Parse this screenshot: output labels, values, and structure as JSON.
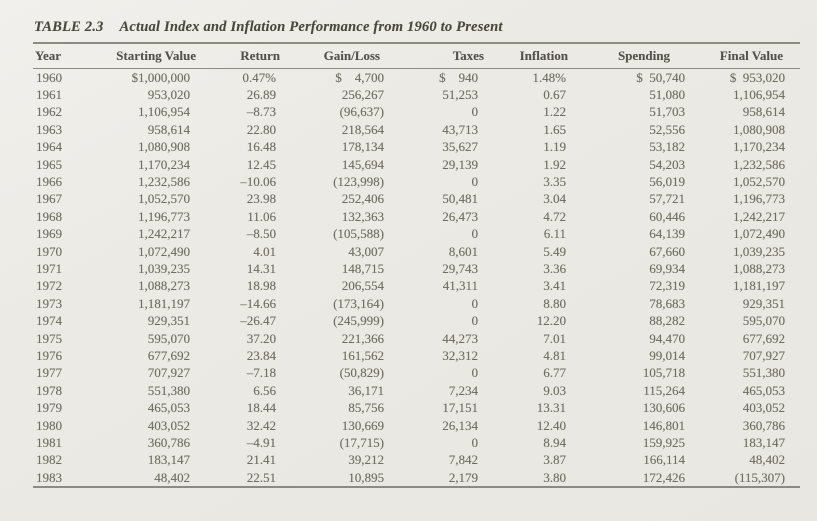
{
  "title": {
    "label": "TABLE 2.3",
    "text": "Actual Index and Inflation Performance from 1960 to Present"
  },
  "colors": {
    "paper": "#ebe9e3",
    "rule": "#8d8b80",
    "heading_text": "#54524a",
    "data_text": "#706e63"
  },
  "table": {
    "columns": [
      "Year",
      "Starting Value",
      "Return",
      "Gain/Loss",
      "Taxes",
      "Inflation",
      "Spending",
      "Final Value"
    ],
    "rows": [
      [
        "1960",
        "$1,000,000",
        "0.47%",
        "$    4,700",
        "$    940",
        "1.48%",
        "$  50,740",
        "$  953,020"
      ],
      [
        "1961",
        "953,020",
        "26.89",
        "256,267",
        "51,253",
        "0.67",
        "51,080",
        "1,106,954"
      ],
      [
        "1962",
        "1,106,954",
        "–8.73",
        "(96,637)",
        "0",
        "1.22",
        "51,703",
        "958,614"
      ],
      [
        "1963",
        "958,614",
        "22.80",
        "218,564",
        "43,713",
        "1.65",
        "52,556",
        "1,080,908"
      ],
      [
        "1964",
        "1,080,908",
        "16.48",
        "178,134",
        "35,627",
        "1.19",
        "53,182",
        "1,170,234"
      ],
      [
        "1965",
        "1,170,234",
        "12.45",
        "145,694",
        "29,139",
        "1.92",
        "54,203",
        "1,232,586"
      ],
      [
        "1966",
        "1,232,586",
        "–10.06",
        "(123,998)",
        "0",
        "3.35",
        "56,019",
        "1,052,570"
      ],
      [
        "1967",
        "1,052,570",
        "23.98",
        "252,406",
        "50,481",
        "3.04",
        "57,721",
        "1,196,773"
      ],
      [
        "1968",
        "1,196,773",
        "11.06",
        "132,363",
        "26,473",
        "4.72",
        "60,446",
        "1,242,217"
      ],
      [
        "1969",
        "1,242,217",
        "–8.50",
        "(105,588)",
        "0",
        "6.11",
        "64,139",
        "1,072,490"
      ],
      [
        "1970",
        "1,072,490",
        "4.01",
        "43,007",
        "8,601",
        "5.49",
        "67,660",
        "1,039,235"
      ],
      [
        "1971",
        "1,039,235",
        "14.31",
        "148,715",
        "29,743",
        "3.36",
        "69,934",
        "1,088,273"
      ],
      [
        "1972",
        "1,088,273",
        "18.98",
        "206,554",
        "41,311",
        "3.41",
        "72,319",
        "1,181,197"
      ],
      [
        "1973",
        "1,181,197",
        "–14.66",
        "(173,164)",
        "0",
        "8.80",
        "78,683",
        "929,351"
      ],
      [
        "1974",
        "929,351",
        "–26.47",
        "(245,999)",
        "0",
        "12.20",
        "88,282",
        "595,070"
      ],
      [
        "1975",
        "595,070",
        "37.20",
        "221,366",
        "44,273",
        "7.01",
        "94,470",
        "677,692"
      ],
      [
        "1976",
        "677,692",
        "23.84",
        "161,562",
        "32,312",
        "4.81",
        "99,014",
        "707,927"
      ],
      [
        "1977",
        "707,927",
        "–7.18",
        "(50,829)",
        "0",
        "6.77",
        "105,718",
        "551,380"
      ],
      [
        "1978",
        "551,380",
        "6.56",
        "36,171",
        "7,234",
        "9.03",
        "115,264",
        "465,053"
      ],
      [
        "1979",
        "465,053",
        "18.44",
        "85,756",
        "17,151",
        "13.31",
        "130,606",
        "403,052"
      ],
      [
        "1980",
        "403,052",
        "32.42",
        "130,669",
        "26,134",
        "12.40",
        "146,801",
        "360,786"
      ],
      [
        "1981",
        "360,786",
        "–4.91",
        "(17,715)",
        "0",
        "8.94",
        "159,925",
        "183,147"
      ],
      [
        "1982",
        "183,147",
        "21.41",
        "39,212",
        "7,842",
        "3.87",
        "166,114",
        "48,402"
      ],
      [
        "1983",
        "48,402",
        "22.51",
        "10,895",
        "2,179",
        "3.80",
        "172,426",
        "(115,307)"
      ]
    ]
  }
}
